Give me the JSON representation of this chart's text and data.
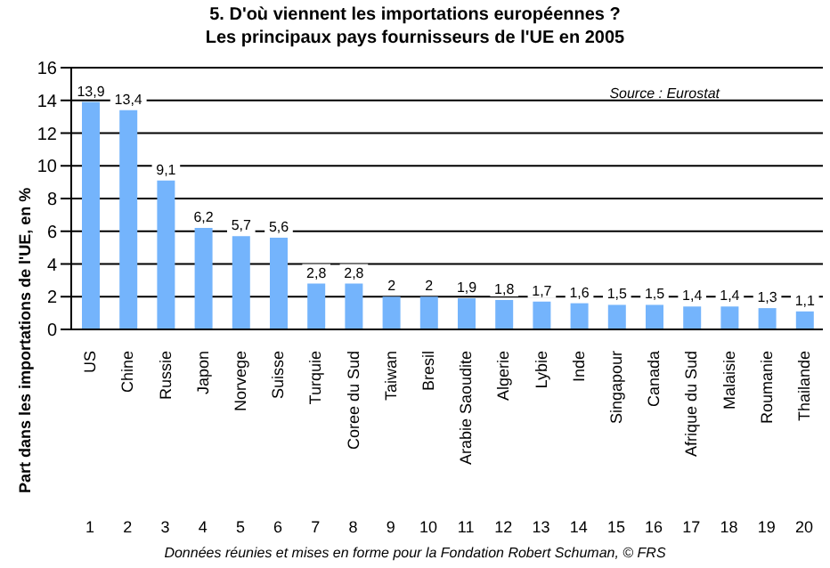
{
  "chart_data": {
    "type": "bar",
    "title": "5.  D'où viennent les importations européennes ?",
    "subtitle": "Les principaux pays fournisseurs de l'UE en 2005",
    "ylabel": "Part dans les importations de l'UE, en %",
    "categories": [
      "US",
      "Chine",
      "Russie",
      "Japon",
      "Norvege",
      "Suisse",
      "Turquie",
      "Coree du Sud",
      "Taiwan",
      "Bresil",
      "Arabie Saoudite",
      "Algerie",
      "Lybie",
      "Inde",
      "Singapour",
      "Canada",
      "Afrique du Sud",
      "Malaisie",
      "Roumanie",
      "Thailande"
    ],
    "values": [
      13.9,
      13.4,
      9.1,
      6.2,
      5.7,
      5.6,
      2.8,
      2.8,
      2,
      2,
      1.9,
      1.8,
      1.7,
      1.6,
      1.5,
      1.5,
      1.4,
      1.4,
      1.3,
      1.1
    ],
    "value_labels": [
      "13,9",
      "13,4",
      "9,1",
      "6,2",
      "5,7",
      "5,6",
      "2,8",
      "2,8",
      "2",
      "2",
      "1,9",
      "1,8",
      "1,7",
      "1,6",
      "1,5",
      "1,5",
      "1,4",
      "1,4",
      "1,3",
      "1,1"
    ],
    "color": "#74b4fc",
    "ylim": [
      0,
      16
    ],
    "yticks": [
      0,
      2,
      4,
      6,
      8,
      10,
      12,
      14,
      16
    ],
    "grid": "y",
    "annotations": [
      "Source : Eurostat",
      "Données réunies et mises en forme pour la Fondation Robert Schuman, © FRS",
      "1",
      "2",
      "3",
      "4",
      "5",
      "6",
      "7",
      "8",
      "9",
      "10",
      "11",
      "12",
      "13",
      "14",
      "15",
      "16",
      "17",
      "18",
      "19",
      "20"
    ]
  }
}
